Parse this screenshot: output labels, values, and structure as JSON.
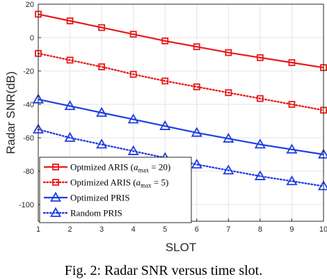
{
  "chart_data": {
    "type": "line",
    "xlabel": "SLOT",
    "ylabel": "Radar SNR(dB)",
    "x": [
      1,
      2,
      3,
      4,
      5,
      6,
      7,
      8,
      9,
      10
    ],
    "xlim": [
      1,
      10
    ],
    "ylim": [
      -110,
      20
    ],
    "xticks": [
      "1",
      "2",
      "3",
      "4",
      "5",
      "6",
      "7",
      "8",
      "9",
      "10"
    ],
    "yticks": [
      "-100",
      "-80",
      "-60",
      "-40",
      "-20",
      "0",
      "20"
    ],
    "grid": true,
    "legend_position": "bottom-left",
    "series": [
      {
        "name": "Optmized ARIS",
        "name_sub": "max",
        "name_suffix": " = 20)",
        "color": "#e8191a",
        "line": "solid",
        "marker": "square",
        "values": [
          14,
          10,
          6,
          2,
          -2,
          -5.5,
          -9,
          -12,
          -15,
          -18
        ]
      },
      {
        "name": "Optimized ARIS",
        "name_sub": "max",
        "name_suffix": " = 5)",
        "color": "#e8191a",
        "line": "dotted",
        "marker": "square",
        "values": [
          -9.5,
          -13.5,
          -17.5,
          -22,
          -26,
          -29.5,
          -33,
          -36.5,
          -40,
          -43.5
        ]
      },
      {
        "name": "Optimized PRIS",
        "color": "#1f3ee0",
        "line": "solid",
        "marker": "triangle",
        "values": [
          -37,
          -41,
          -45,
          -49,
          -53,
          -57,
          -60.5,
          -64,
          -67,
          -70
        ]
      },
      {
        "name": "Random PRIS",
        "color": "#1f3ee0",
        "line": "dotted",
        "marker": "triangle",
        "values": [
          -55,
          -60,
          -64,
          -68,
          -72,
          -76,
          -79.5,
          -83,
          -86,
          -89
        ]
      }
    ]
  },
  "caption": "Fig. 2: Radar SNR versus time slot."
}
